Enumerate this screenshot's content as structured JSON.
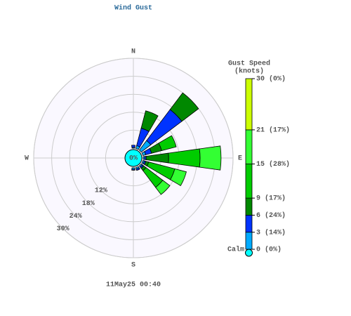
{
  "chart_data": {
    "type": "windrose",
    "title": "Wind Gust",
    "subtitle": "11May25 00:40",
    "legend_title": [
      "Gust Speed",
      "(knots)"
    ],
    "categories": [
      "N",
      null,
      null,
      null,
      "E",
      null,
      null,
      null,
      "S",
      null,
      null,
      null,
      "W",
      null,
      null,
      null
    ],
    "series": [
      {
        "color": "#00aaff",
        "values": [
          0.3,
          1,
          4,
          1,
          0.5,
          0.5,
          0.5,
          0.5,
          0.5,
          0,
          0,
          0,
          0,
          0,
          0,
          0
        ]
      },
      {
        "color": "#0033ff",
        "values": [
          0.7,
          6,
          13,
          2,
          0.5,
          0.5,
          0.5,
          0.5,
          0.3,
          0,
          0,
          0,
          0,
          0,
          0,
          0
        ]
      },
      {
        "color": "#008800",
        "values": [
          0,
          6,
          7,
          3.5,
          7.5,
          1,
          1,
          0,
          0,
          0,
          0,
          0,
          0,
          0,
          0,
          0
        ]
      },
      {
        "color": "#00cc00",
        "values": [
          0,
          0,
          0,
          5,
          10.5,
          9,
          7,
          0,
          0,
          0,
          0,
          0,
          0,
          0,
          0,
          0
        ]
      },
      {
        "color": "#33ff33",
        "values": [
          0,
          0,
          0,
          0,
          7,
          4,
          3,
          0,
          0,
          0,
          0,
          0,
          0,
          0,
          0,
          0
        ]
      },
      {
        "color": "#ccff00",
        "values": [
          0,
          0,
          0,
          0,
          0,
          0,
          0,
          0,
          0,
          0,
          0,
          0,
          0,
          0,
          0,
          0
        ]
      }
    ],
    "rlim": [
      0,
      30
    ],
    "rticks": [
      {
        "value": 12,
        "label": "12%"
      },
      {
        "value": 18,
        "label": "18%"
      },
      {
        "value": 24,
        "label": "24%"
      },
      {
        "value": 30,
        "label": "30%"
      }
    ],
    "calm": {
      "value": 0,
      "label": "0%",
      "color": "#00ffff"
    },
    "legend_label_calm": "Calm",
    "legend": [
      {
        "value": 0,
        "label": "0 (0%)"
      },
      {
        "value": 3,
        "label": "3 (14%)"
      },
      {
        "value": 6,
        "label": "6 (24%)"
      },
      {
        "value": 9,
        "label": "9 (17%)"
      },
      {
        "value": 15,
        "label": "15 (28%)"
      },
      {
        "value": 21,
        "label": "21 (17%)"
      },
      {
        "value": 30,
        "label": "30 (0%)"
      }
    ]
  }
}
